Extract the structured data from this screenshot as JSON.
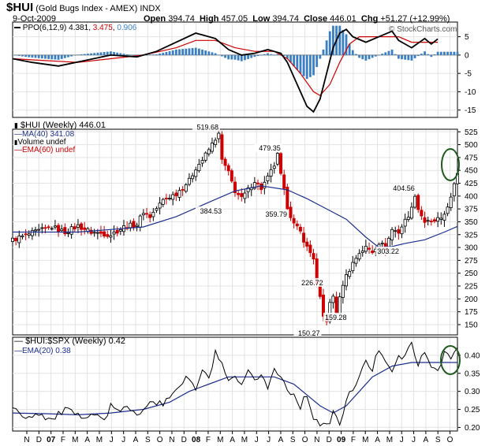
{
  "header": {
    "symbol": "$HUI",
    "name": "(Gold Bugs Index - AMEX)",
    "exchange": "INDX",
    "date": "9-Oct-2009",
    "open_label": "Open",
    "open": "394.74",
    "high_label": "High",
    "high": "457.05",
    "low_label": "Low",
    "low": "394.74",
    "close_label": "Close",
    "close": "446.01",
    "chg_label": "Chg",
    "chg": "+51.27 (+12.99%)",
    "copyright": "© StockCharts.com"
  },
  "colors": {
    "up": "#000000",
    "down": "#cc0000",
    "ma": "#1c2f8f",
    "ppo_signal": "#cc0000",
    "ppo_hist": "#3a7fc4",
    "highlight": "#1f5a1f"
  },
  "chart_data": [
    {
      "type": "line",
      "title": "PPO(6,12,9)",
      "legend": {
        "ppo": "PPO(6,12,9)",
        "ppo_value": "4.381",
        "signal_value": "3.475",
        "hist_value": "0.906"
      },
      "ylim": [
        -17,
        9
      ],
      "yticks": [
        5,
        0,
        -5,
        -10,
        -15
      ],
      "series": [
        {
          "name": "PPO",
          "points": [
            [
              0,
              -1
            ],
            [
              6,
              -2
            ],
            [
              14,
              -3
            ],
            [
              22,
              -1.5
            ],
            [
              30,
              0
            ],
            [
              38,
              -0.5
            ],
            [
              44,
              1
            ],
            [
              50,
              3.5
            ],
            [
              56,
              6
            ],
            [
              62,
              4.5
            ],
            [
              66,
              1.5
            ],
            [
              70,
              0
            ],
            [
              74,
              0.5
            ],
            [
              78,
              1.5
            ],
            [
              82,
              0.5
            ],
            [
              84,
              -2
            ],
            [
              86,
              -6
            ],
            [
              88,
              -10
            ],
            [
              90,
              -14
            ],
            [
              92,
              -15.5
            ],
            [
              94,
              -12
            ],
            [
              96,
              -5
            ],
            [
              98,
              2
            ],
            [
              100,
              6
            ],
            [
              102,
              7
            ],
            [
              104,
              5
            ],
            [
              108,
              3.5
            ],
            [
              112,
              5
            ],
            [
              116,
              6.5
            ],
            [
              118,
              4
            ],
            [
              122,
              2
            ],
            [
              126,
              4.5
            ],
            [
              128,
              3
            ],
            [
              130,
              4.4
            ]
          ]
        },
        {
          "name": "Signal",
          "points": [
            [
              0,
              -1
            ],
            [
              10,
              -1.5
            ],
            [
              20,
              -2
            ],
            [
              30,
              -1
            ],
            [
              40,
              0
            ],
            [
              50,
              2
            ],
            [
              56,
              4
            ],
            [
              62,
              4
            ],
            [
              68,
              2
            ],
            [
              74,
              1
            ],
            [
              80,
              1
            ],
            [
              84,
              -1
            ],
            [
              88,
              -5
            ],
            [
              92,
              -10
            ],
            [
              94,
              -11
            ],
            [
              97,
              -8
            ],
            [
              100,
              -2
            ],
            [
              103,
              3
            ],
            [
              106,
              5
            ],
            [
              112,
              5
            ],
            [
              118,
              5
            ],
            [
              122,
              3.5
            ],
            [
              126,
              3.5
            ],
            [
              130,
              3.5
            ]
          ]
        }
      ]
    },
    {
      "type": "candlestick",
      "title": "$HUI (Weekly)",
      "legend": {
        "price_label": "$HUI (Weekly) 446.01",
        "ma_label": "MA(40) 341.08",
        "volume_label": "Volume undef",
        "ema_label": "EMA(60) undef"
      },
      "ylim": [
        130,
        530
      ],
      "yticks": [
        525,
        500,
        475,
        450,
        425,
        400,
        375,
        350,
        325,
        300,
        275,
        250,
        225,
        200,
        175,
        150
      ],
      "annotations": [
        "519.68",
        "479.35",
        "384.53",
        "359.79",
        "404.56",
        "303.22",
        "226.72",
        "159.28",
        "150.27"
      ],
      "close_path": [
        [
          0,
          315
        ],
        [
          6,
          328
        ],
        [
          12,
          340
        ],
        [
          16,
          330
        ],
        [
          20,
          342
        ],
        [
          24,
          330
        ],
        [
          30,
          325
        ],
        [
          34,
          340
        ],
        [
          38,
          345
        ],
        [
          40,
          370
        ],
        [
          42,
          360
        ],
        [
          46,
          392
        ],
        [
          50,
          405
        ],
        [
          54,
          430
        ],
        [
          56,
          455
        ],
        [
          58,
          470
        ],
        [
          60,
          490
        ],
        [
          62,
          512
        ],
        [
          63,
          519
        ],
        [
          64,
          470
        ],
        [
          66,
          445
        ],
        [
          68,
          410
        ],
        [
          70,
          395
        ],
        [
          72,
          412
        ],
        [
          74,
          430
        ],
        [
          76,
          415
        ],
        [
          78,
          435
        ],
        [
          80,
          460
        ],
        [
          81,
          479
        ],
        [
          82,
          440
        ],
        [
          84,
          380
        ],
        [
          86,
          345
        ],
        [
          88,
          330
        ],
        [
          90,
          300
        ],
        [
          92,
          280
        ],
        [
          93,
          226
        ],
        [
          94,
          200
        ],
        [
          95,
          165
        ],
        [
          96,
          159
        ],
        [
          97,
          190
        ],
        [
          98,
          205
        ],
        [
          99,
          175
        ],
        [
          100,
          200
        ],
        [
          101,
          230
        ],
        [
          102,
          245
        ],
        [
          104,
          270
        ],
        [
          106,
          290
        ],
        [
          108,
          300
        ],
        [
          110,
          292
        ],
        [
          112,
          310
        ],
        [
          114,
          300
        ],
        [
          116,
          335
        ],
        [
          118,
          330
        ],
        [
          120,
          352
        ],
        [
          122,
          375
        ],
        [
          123,
          404
        ],
        [
          124,
          375
        ],
        [
          126,
          350
        ],
        [
          128,
          348
        ],
        [
          130,
          355
        ],
        [
          131,
          352
        ],
        [
          132,
          365
        ],
        [
          133,
          382
        ],
        [
          134,
          395
        ],
        [
          135,
          420
        ],
        [
          136,
          446
        ]
      ],
      "ma40": [
        [
          0,
          330
        ],
        [
          20,
          330
        ],
        [
          40,
          340
        ],
        [
          50,
          360
        ],
        [
          60,
          388
        ],
        [
          68,
          410
        ],
        [
          76,
          420
        ],
        [
          84,
          412
        ],
        [
          90,
          395
        ],
        [
          96,
          375
        ],
        [
          102,
          355
        ],
        [
          108,
          320
        ],
        [
          112,
          300
        ],
        [
          116,
          302
        ],
        [
          120,
          308
        ],
        [
          126,
          315
        ],
        [
          132,
          330
        ],
        [
          136,
          341
        ]
      ]
    },
    {
      "type": "line",
      "title": "$HUI:$SPX (Weekly)",
      "legend": {
        "ratio_label": "$HUI:$SPX (Weekly) 0.42",
        "ema_label": "EMA(20) 0.38"
      },
      "ylim": [
        0.19,
        0.45
      ],
      "yticks": [
        0.4,
        0.35,
        0.3,
        0.25,
        0.2
      ],
      "series": [
        {
          "name": "Ratio",
          "points": [
            [
              0,
              0.25
            ],
            [
              4,
              0.23
            ],
            [
              8,
              0.24
            ],
            [
              12,
              0.22
            ],
            [
              16,
              0.25
            ],
            [
              20,
              0.23
            ],
            [
              24,
              0.24
            ],
            [
              28,
              0.22
            ],
            [
              30,
              0.26
            ],
            [
              32,
              0.24
            ],
            [
              34,
              0.26
            ],
            [
              38,
              0.23
            ],
            [
              42,
              0.28
            ],
            [
              46,
              0.26
            ],
            [
              50,
              0.31
            ],
            [
              54,
              0.34
            ],
            [
              56,
              0.3
            ],
            [
              58,
              0.36
            ],
            [
              60,
              0.33
            ],
            [
              62,
              0.41
            ],
            [
              64,
              0.37
            ],
            [
              66,
              0.32
            ],
            [
              68,
              0.34
            ],
            [
              70,
              0.31
            ],
            [
              72,
              0.35
            ],
            [
              74,
              0.33
            ],
            [
              76,
              0.35
            ],
            [
              78,
              0.31
            ],
            [
              80,
              0.36
            ],
            [
              82,
              0.34
            ],
            [
              84,
              0.31
            ],
            [
              86,
              0.29
            ],
            [
              88,
              0.26
            ],
            [
              90,
              0.29
            ],
            [
              92,
              0.23
            ],
            [
              94,
              0.21
            ],
            [
              96,
              0.2
            ],
            [
              98,
              0.24
            ],
            [
              100,
              0.21
            ],
            [
              102,
              0.27
            ],
            [
              104,
              0.31
            ],
            [
              106,
              0.34
            ],
            [
              108,
              0.38
            ],
            [
              110,
              0.36
            ],
            [
              112,
              0.42
            ],
            [
              114,
              0.39
            ],
            [
              116,
              0.36
            ],
            [
              118,
              0.39
            ],
            [
              120,
              0.4
            ],
            [
              122,
              0.43
            ],
            [
              124,
              0.38
            ],
            [
              126,
              0.4
            ],
            [
              128,
              0.37
            ],
            [
              130,
              0.36
            ],
            [
              132,
              0.41
            ],
            [
              134,
              0.39
            ],
            [
              136,
              0.42
            ]
          ]
        },
        {
          "name": "EMA(20)",
          "points": [
            [
              0,
              0.24
            ],
            [
              10,
              0.238
            ],
            [
              20,
              0.235
            ],
            [
              30,
              0.24
            ],
            [
              40,
              0.25
            ],
            [
              48,
              0.27
            ],
            [
              54,
              0.3
            ],
            [
              60,
              0.32
            ],
            [
              66,
              0.34
            ],
            [
              72,
              0.34
            ],
            [
              80,
              0.34
            ],
            [
              86,
              0.32
            ],
            [
              90,
              0.29
            ],
            [
              94,
              0.26
            ],
            [
              98,
              0.24
            ],
            [
              102,
              0.26
            ],
            [
              106,
              0.3
            ],
            [
              110,
              0.34
            ],
            [
              116,
              0.37
            ],
            [
              122,
              0.38
            ],
            [
              128,
              0.38
            ],
            [
              132,
              0.38
            ],
            [
              136,
              0.38
            ]
          ]
        }
      ]
    }
  ],
  "x_axis": {
    "months": [
      "N",
      "D",
      "07",
      "F",
      "M",
      "A",
      "M",
      "J",
      "J",
      "A",
      "S",
      "O",
      "N",
      "D",
      "08",
      "F",
      "M",
      "A",
      "M",
      "J",
      "J",
      "A",
      "S",
      "O",
      "N",
      "D",
      "09",
      "F",
      "M",
      "A",
      "M",
      "J",
      "J",
      "A",
      "S",
      "O"
    ]
  }
}
